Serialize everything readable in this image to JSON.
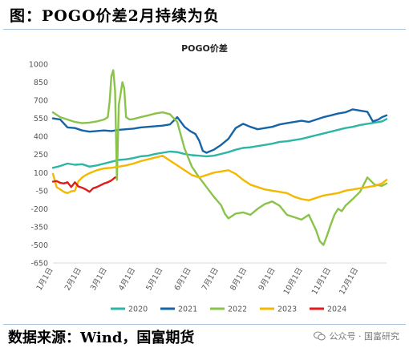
{
  "header": {
    "title": "图：POGO价差2月持续为负"
  },
  "footer": {
    "source": "数据来源：Wind，国富期货",
    "watermark": "公众号 · 国富研究"
  },
  "icons": {
    "watermark_icon": "wechat-icon"
  },
  "chart_data": {
    "type": "line",
    "title": "POGO价差",
    "xlabel": "",
    "ylabel": "",
    "ylim": [
      -650,
      1000
    ],
    "yticks": [
      1000,
      850,
      700,
      550,
      400,
      250,
      100,
      -50,
      -200,
      -350,
      -500,
      -650
    ],
    "xlim": [
      0,
      365
    ],
    "xtick_labels": [
      "1月1日",
      "2月1日",
      "3月1日",
      "4月1日",
      "5月1日",
      "6月1日",
      "7月1日",
      "8月1日",
      "9月1日",
      "10月1日",
      "11月1日",
      "12月1日"
    ],
    "xtick_days": [
      0,
      31,
      59,
      90,
      120,
      151,
      181,
      212,
      243,
      273,
      304,
      334
    ],
    "grid": false,
    "legend": "bottom",
    "series": [
      {
        "name": "2020",
        "color": "#2db5a5",
        "x": [
          0,
          8,
          16,
          24,
          32,
          40,
          48,
          56,
          64,
          72,
          80,
          88,
          96,
          104,
          112,
          120,
          128,
          136,
          144,
          152,
          160,
          168,
          176,
          184,
          192,
          200,
          208,
          216,
          224,
          232,
          240,
          248,
          256,
          264,
          272,
          280,
          288,
          296,
          304,
          312,
          320,
          328,
          336,
          344,
          352,
          360,
          365
        ],
        "values": [
          140,
          155,
          175,
          165,
          170,
          150,
          160,
          175,
          190,
          205,
          210,
          220,
          235,
          240,
          255,
          265,
          275,
          270,
          255,
          245,
          240,
          235,
          240,
          255,
          270,
          290,
          305,
          310,
          320,
          330,
          340,
          355,
          360,
          370,
          380,
          395,
          410,
          425,
          440,
          455,
          470,
          480,
          495,
          505,
          515,
          525,
          545
        ]
      },
      {
        "name": "2021",
        "color": "#1664a8",
        "x": [
          0,
          8,
          16,
          24,
          32,
          40,
          48,
          56,
          64,
          72,
          80,
          88,
          96,
          104,
          112,
          120,
          128,
          136,
          140,
          144,
          150,
          156,
          160,
          164,
          168,
          176,
          184,
          192,
          200,
          208,
          216,
          224,
          232,
          240,
          248,
          256,
          264,
          272,
          280,
          288,
          296,
          304,
          312,
          320,
          328,
          336,
          344,
          350,
          356,
          360,
          365
        ],
        "values": [
          550,
          540,
          475,
          470,
          450,
          440,
          445,
          450,
          445,
          455,
          460,
          465,
          475,
          480,
          485,
          490,
          500,
          560,
          520,
          480,
          445,
          420,
          365,
          280,
          265,
          290,
          330,
          380,
          470,
          505,
          480,
          460,
          470,
          480,
          500,
          510,
          520,
          530,
          520,
          540,
          560,
          575,
          590,
          600,
          625,
          615,
          605,
          525,
          540,
          560,
          575
        ]
      },
      {
        "name": "2022",
        "color": "#8ac34a",
        "x": [
          0,
          8,
          16,
          24,
          32,
          40,
          48,
          56,
          60,
          62,
          64,
          66,
          68,
          70,
          72,
          74,
          76,
          78,
          80,
          84,
          88,
          96,
          104,
          112,
          120,
          128,
          136,
          144,
          152,
          160,
          168,
          176,
          184,
          188,
          192,
          200,
          208,
          216,
          224,
          232,
          240,
          248,
          256,
          264,
          272,
          280,
          288,
          292,
          296,
          300,
          304,
          308,
          312,
          316,
          320,
          328,
          336,
          344,
          352,
          360,
          365
        ],
        "values": [
          600,
          560,
          540,
          520,
          510,
          515,
          525,
          540,
          560,
          690,
          900,
          950,
          780,
          40,
          660,
          750,
          850,
          800,
          560,
          540,
          545,
          560,
          575,
          590,
          600,
          585,
          520,
          300,
          150,
          60,
          -20,
          -100,
          -170,
          -240,
          -280,
          -240,
          -230,
          -250,
          -200,
          -160,
          -140,
          -175,
          -250,
          -270,
          -290,
          -250,
          -380,
          -470,
          -500,
          -420,
          -330,
          -250,
          -200,
          -220,
          -175,
          -120,
          -60,
          60,
          0,
          -10,
          10
        ]
      },
      {
        "name": "2023",
        "color": "#f5b800",
        "x": [
          0,
          4,
          8,
          12,
          16,
          20,
          24,
          28,
          32,
          36,
          40,
          48,
          56,
          64,
          72,
          80,
          88,
          96,
          104,
          112,
          120,
          128,
          136,
          144,
          152,
          160,
          168,
          176,
          184,
          192,
          200,
          208,
          216,
          224,
          232,
          240,
          248,
          256,
          264,
          272,
          280,
          288,
          296,
          304,
          312,
          320,
          328,
          336,
          344,
          352,
          360,
          365
        ],
        "values": [
          90,
          -20,
          -40,
          -60,
          -70,
          -55,
          -50,
          30,
          60,
          80,
          95,
          120,
          135,
          140,
          150,
          160,
          175,
          195,
          210,
          225,
          240,
          200,
          160,
          120,
          80,
          60,
          80,
          100,
          110,
          120,
          90,
          40,
          0,
          -20,
          -40,
          -50,
          -60,
          -70,
          -100,
          -120,
          -130,
          -110,
          -90,
          -80,
          -70,
          -50,
          -40,
          -30,
          -20,
          -10,
          10,
          40
        ]
      },
      {
        "name": "2024",
        "color": "#e21a1a",
        "x": [
          0,
          4,
          8,
          12,
          16,
          20,
          24,
          28,
          32,
          36,
          40,
          44,
          48,
          52,
          56,
          60,
          64,
          68
        ],
        "values": [
          25,
          30,
          15,
          10,
          20,
          -20,
          20,
          -15,
          -25,
          -40,
          -60,
          -30,
          -20,
          -5,
          10,
          20,
          35,
          60
        ]
      }
    ]
  }
}
